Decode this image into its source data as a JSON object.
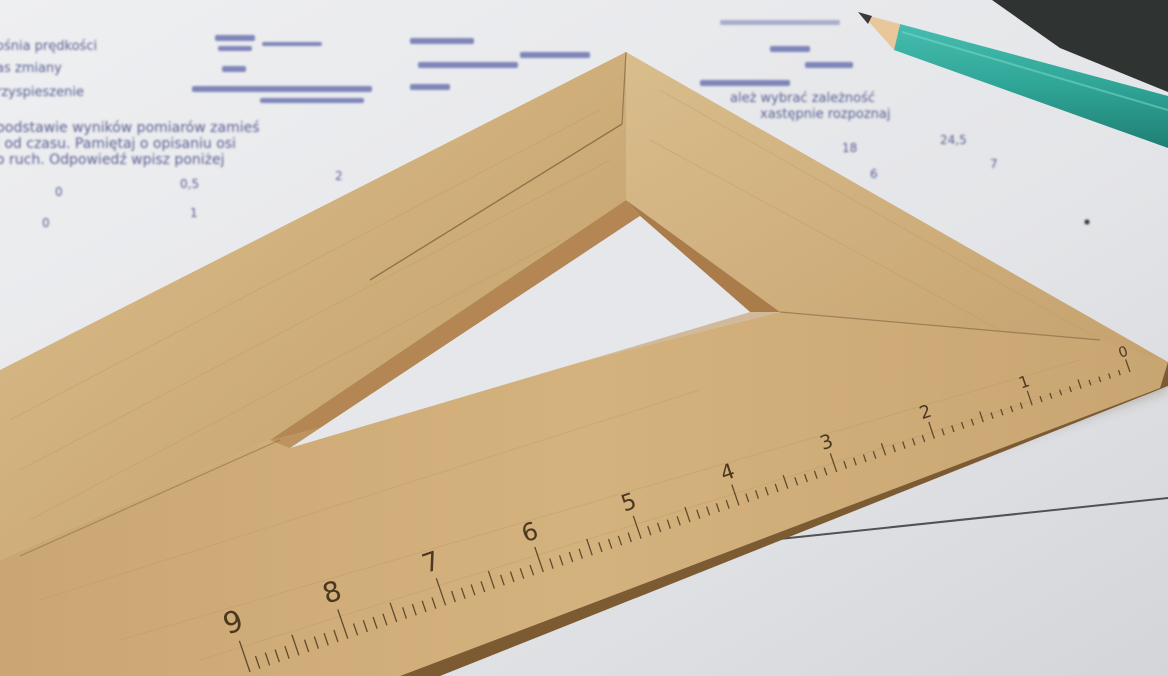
{
  "photo": {
    "subject": "wooden-set-square-on-worksheet",
    "colors": {
      "paper": "#e9eaed",
      "paper_shadow": "#c9cbd0",
      "wood_light": "#d7b887",
      "wood_mid": "#c4a06d",
      "wood_dark": "#8d6a3e",
      "ink": "#4a4f86",
      "pencil_body": "#2fa597",
      "pencil_wood": "#e8c79b",
      "graphite": "#3a3a3a",
      "board": "#2f3433"
    }
  },
  "worksheet": {
    "row_labels": [
      "ośnia prędkości",
      "as zmiany",
      "rzyspieszenie"
    ],
    "paragraph": [
      "podstawie wyników pomiarów zamieś",
      "i od czasu. Pamiętaj o opisaniu osi",
      "o ruch. Odpowiedź wpisz poniżej"
    ],
    "right_note": [
      "ależ wybrać zależność",
      "xastępnie rozpoznaj"
    ],
    "table_row_1": [
      "0",
      "0,5",
      "2"
    ],
    "table_row_2": [
      "0",
      "1"
    ],
    "right_numbers": [
      "18",
      "24,5",
      "6",
      "7"
    ]
  },
  "ruler": {
    "scale_numbers": [
      "0",
      "1",
      "2",
      "3",
      "4",
      "5",
      "6",
      "7",
      "8",
      "9"
    ]
  }
}
